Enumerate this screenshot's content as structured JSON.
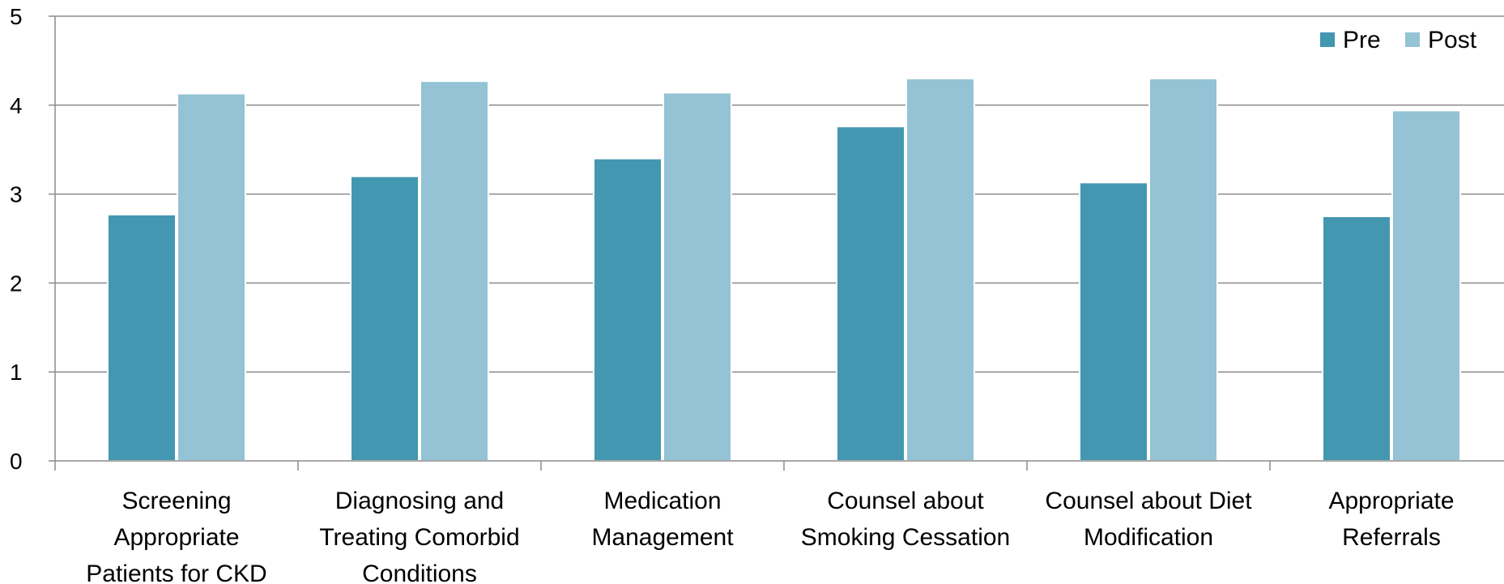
{
  "chart_data": {
    "type": "bar",
    "categories": [
      [
        "Screening",
        "Appropriate",
        "Patients for CKD"
      ],
      [
        "Diagnosing and",
        "Treating Comorbid",
        "Conditions"
      ],
      [
        "Medication",
        "Management"
      ],
      [
        "Counsel about",
        "Smoking Cessation"
      ],
      [
        "Counsel about Diet",
        "Modification"
      ],
      [
        "Appropriate",
        "Referrals"
      ]
    ],
    "series": [
      {
        "name": "Pre",
        "color": "#4397b0",
        "values": [
          2.77,
          3.2,
          3.4,
          3.76,
          3.13,
          2.75
        ]
      },
      {
        "name": "Post",
        "color": "#93c3d5",
        "values": [
          4.13,
          4.27,
          4.14,
          4.3,
          4.3,
          3.94
        ]
      }
    ],
    "ylim": [
      0,
      5
    ],
    "yticks": [
      "0",
      "1",
      "2",
      "3",
      "4",
      "5"
    ],
    "grid": true,
    "legend_position": "top-right",
    "title": "",
    "xlabel": "",
    "ylabel": ""
  }
}
